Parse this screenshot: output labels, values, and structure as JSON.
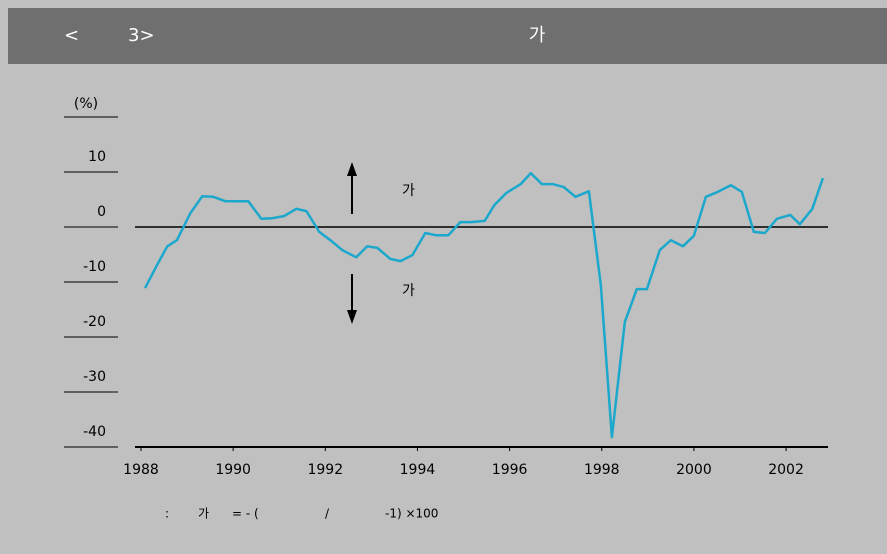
{
  "header": {
    "left": "<",
    "number": "3>",
    "title": "가"
  },
  "chart_data": {
    "type": "line",
    "y_label": "(%)",
    "x": [
      1988.09,
      1988.35,
      1988.57,
      1988.78,
      1989.07,
      1989.33,
      1989.57,
      1989.83,
      1990.09,
      1990.33,
      1990.61,
      1990.85,
      1991.11,
      1991.37,
      1991.59,
      1991.87,
      1992.11,
      1992.37,
      1992.67,
      1992.91,
      1993.13,
      1993.41,
      1993.63,
      1993.89,
      1994.17,
      1994.41,
      1994.67,
      1994.93,
      1995.17,
      1995.46,
      1995.67,
      1995.93,
      1996.24,
      1996.46,
      1996.7,
      1996.93,
      1997.17,
      1997.43,
      1997.72,
      1997.98,
      1998.22,
      1998.5,
      1998.76,
      1998.98,
      1999.26,
      1999.5,
      1999.76,
      2000.0,
      2000.26,
      2000.52,
      2000.8,
      2001.04,
      2001.3,
      2001.54,
      2001.8,
      2002.09,
      2002.3,
      2002.57,
      2002.8
    ],
    "series": [
      {
        "color": "#1ba8cc",
        "values": [
          -11.1,
          -6.9,
          -3.5,
          -2.4,
          2.5,
          5.6,
          5.5,
          4.7,
          4.7,
          4.7,
          1.5,
          1.6,
          2.0,
          3.3,
          2.9,
          -0.9,
          -2.4,
          -4.2,
          -5.5,
          -3.5,
          -3.8,
          -5.8,
          -6.2,
          -5.1,
          -1.1,
          -1.5,
          -1.5,
          0.9,
          0.9,
          1.1,
          4.0,
          6.2,
          7.8,
          9.8,
          7.8,
          7.8,
          7.3,
          5.5,
          6.5,
          -10.5,
          -38.2,
          -17.3,
          -11.3,
          -11.3,
          -4.2,
          -2.4,
          -3.5,
          -1.6,
          5.5,
          6.4,
          7.6,
          6.4,
          -0.9,
          -1.1,
          1.5,
          2.2,
          0.5,
          3.3,
          8.9
        ]
      }
    ],
    "xlim": [
      1987.87,
      2002.91
    ],
    "ylim": [
      -40,
      10
    ],
    "xticks": [
      1988,
      1990,
      1992,
      1994,
      1996,
      1998,
      2000,
      2002
    ],
    "yticks": [
      10,
      0,
      -10,
      -20,
      -30,
      -40
    ],
    "annotations": [
      "가",
      "가"
    ]
  },
  "footnote": {
    "parts": [
      ":",
      "가",
      "= - (",
      "/",
      "-1) ×100"
    ]
  }
}
